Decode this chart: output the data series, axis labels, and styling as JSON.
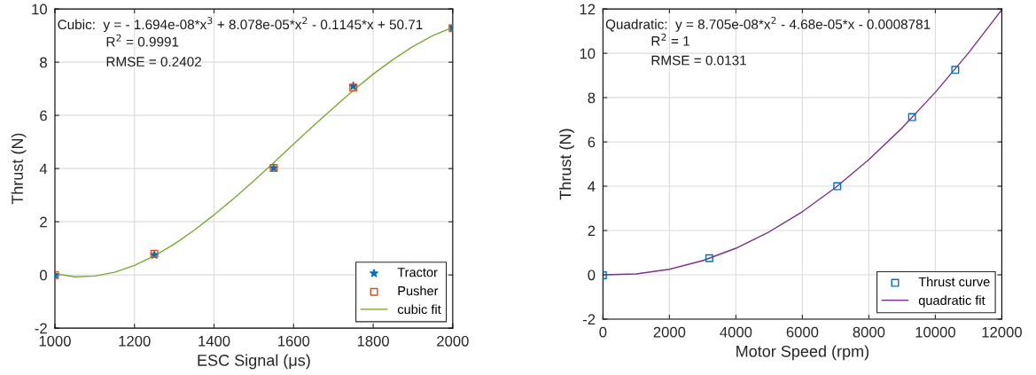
{
  "chart_data": [
    {
      "type": "scatter",
      "xlabel": "ESC Signal (μs)",
      "ylabel": "Thrust (N)",
      "xlim": [
        1000,
        2000
      ],
      "ylim": [
        -2,
        10
      ],
      "xticks": [
        1000,
        1200,
        1400,
        1600,
        1800,
        2000
      ],
      "yticks": [
        -2,
        0,
        2,
        4,
        6,
        8,
        10
      ],
      "grid": true,
      "legend": "bottom right",
      "annotations": [
        "Cubic:  y = - 1.694e-08*x$^{3}$ + 8.078e-05*x$^{2}$ - 0.1145*x + 50.71",
        "R$^{2}$ = 0.9991",
        "RMSE = 0.2402"
      ],
      "x": [
        1000,
        1250,
        1550,
        1750,
        2000
      ],
      "series": [
        {
          "name": "Tractor",
          "type": "scatter",
          "marker": "star",
          "color": "#0072bd",
          "values": [
            0,
            0.75,
            4.02,
            7.1,
            9.3
          ]
        },
        {
          "name": "Pusher",
          "type": "scatter",
          "marker": "square",
          "color": "#d95319",
          "values": [
            0,
            0.8,
            4.02,
            7.05,
            9.28
          ]
        },
        {
          "name": "cubic fit",
          "type": "line",
          "marker": "none",
          "line_style": "solid",
          "color": "#77ac30",
          "x": [
            1000,
            1050,
            1100,
            1150,
            1200,
            1250,
            1300,
            1350,
            1400,
            1450,
            1500,
            1550,
            1600,
            1650,
            1700,
            1750,
            1800,
            1850,
            1900,
            1950,
            2000
          ],
          "values": [
            0.05,
            -0.07,
            -0.04,
            0.1,
            0.36,
            0.72,
            1.16,
            1.68,
            2.26,
            2.88,
            3.54,
            4.22,
            4.92,
            5.61,
            6.28,
            6.94,
            7.55,
            8.1,
            8.59,
            9.0,
            9.31
          ]
        }
      ]
    },
    {
      "type": "scatter",
      "xlabel": "Motor Speed (rpm)",
      "ylabel": "Thrust (N)",
      "xlim": [
        0,
        12000
      ],
      "ylim": [
        -2,
        12
      ],
      "xticks": [
        0,
        2000,
        4000,
        6000,
        8000,
        10000,
        12000
      ],
      "yticks": [
        -2,
        0,
        2,
        4,
        6,
        8,
        10,
        12
      ],
      "grid": true,
      "legend": "bottom right",
      "annotations": [
        "Quadratic:  y = 8.705e-08*x$^{2}$ - 4.68e-05*x - 0.0008781",
        "R$^{2}$ = 1",
        "RMSE = 0.0131"
      ],
      "x": [
        0,
        3200,
        7050,
        9300,
        10600
      ],
      "series": [
        {
          "name": "Thrust curve",
          "type": "scatter",
          "marker": "square",
          "color": "#0072bd",
          "values": [
            -0.02,
            0.75,
            4.0,
            7.12,
            9.25
          ]
        },
        {
          "name": "quadratic fit",
          "type": "line",
          "marker": "none",
          "line_style": "solid",
          "color": "#7e2f8e",
          "x": [
            0,
            1000,
            2000,
            3000,
            4000,
            5000,
            6000,
            7000,
            8000,
            9000,
            10000,
            11000,
            12000
          ],
          "values": [
            0,
            0.04,
            0.25,
            0.64,
            1.2,
            1.94,
            2.85,
            3.94,
            5.2,
            6.63,
            8.24,
            10.02,
            11.97
          ]
        }
      ]
    }
  ]
}
